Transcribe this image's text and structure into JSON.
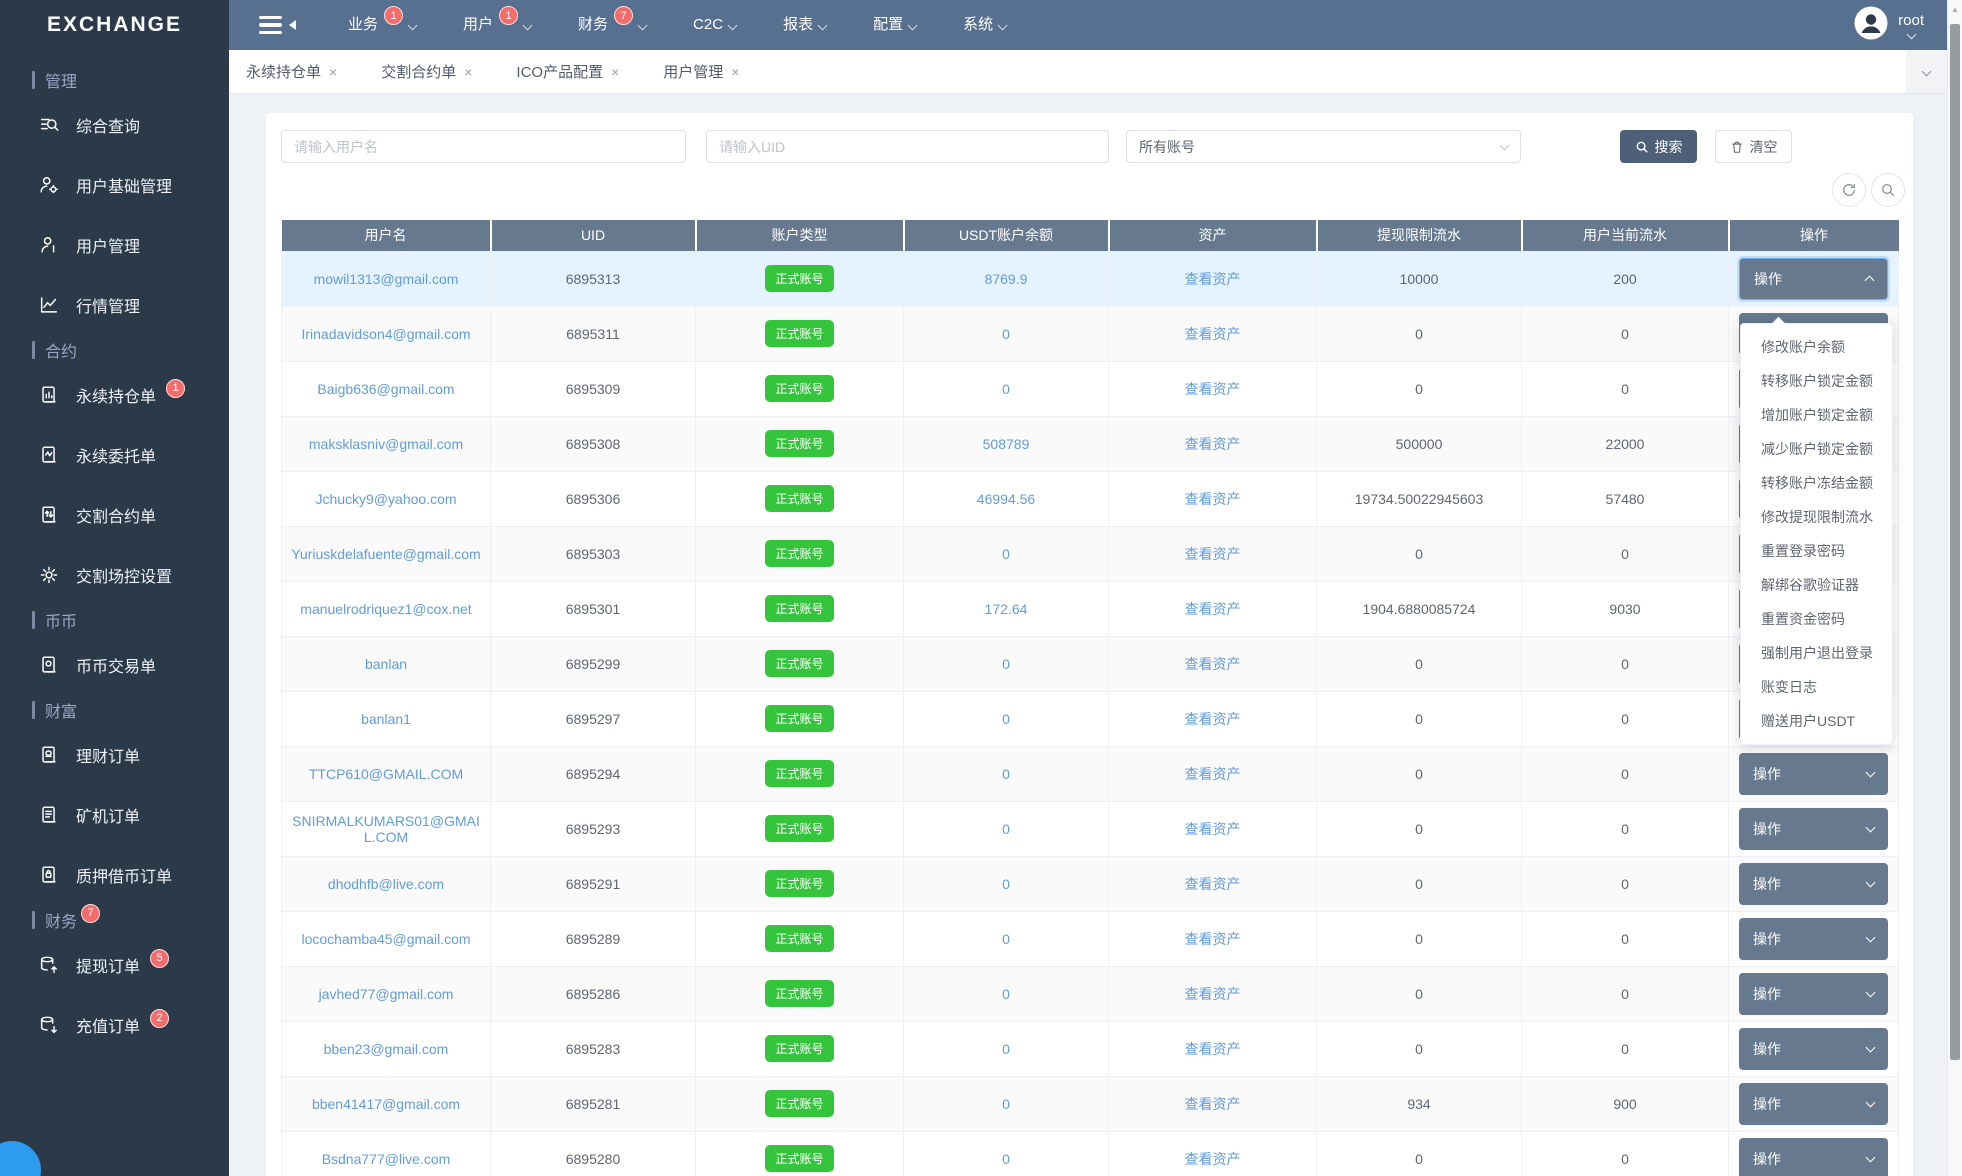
{
  "app": {
    "logo_text": "EXCHANGE",
    "user_name": "root"
  },
  "navbar": {
    "menus": [
      {
        "label": "业务",
        "badge": "1"
      },
      {
        "label": "用户",
        "badge": "1"
      },
      {
        "label": "财务",
        "badge": "7"
      },
      {
        "label": "C2C",
        "badge": ""
      },
      {
        "label": "报表",
        "badge": ""
      },
      {
        "label": "配置",
        "badge": ""
      },
      {
        "label": "系统",
        "badge": ""
      }
    ]
  },
  "sidebar": {
    "groups": [
      {
        "label": "管理",
        "badge": "",
        "items": [
          {
            "label": "综合查询",
            "icon": "search-list-icon",
            "badge": ""
          },
          {
            "label": "用户基础管理",
            "icon": "user-gear-icon",
            "badge": ""
          },
          {
            "label": "用户管理",
            "icon": "user-icon",
            "badge": ""
          },
          {
            "label": "行情管理",
            "icon": "chart-icon",
            "badge": ""
          }
        ]
      },
      {
        "label": "合约",
        "badge": "",
        "items": [
          {
            "label": "永续持仓单",
            "icon": "doc-chart-icon",
            "badge": "1"
          },
          {
            "label": "永续委托单",
            "icon": "doc-wave-icon",
            "badge": ""
          },
          {
            "label": "交割合约单",
            "icon": "doc-arrows-icon",
            "badge": ""
          },
          {
            "label": "交割场控设置",
            "icon": "gear-icon",
            "badge": ""
          }
        ]
      },
      {
        "label": "币币",
        "badge": "",
        "items": [
          {
            "label": "币币交易单",
            "icon": "doc-coin-icon",
            "badge": ""
          }
        ]
      },
      {
        "label": "财富",
        "badge": "",
        "items": [
          {
            "label": "理财订单",
            "icon": "doc-money-icon",
            "badge": ""
          },
          {
            "label": "矿机订单",
            "icon": "doc-lines-icon",
            "badge": ""
          },
          {
            "label": "质押借币订单",
            "icon": "doc-lock-icon",
            "badge": ""
          }
        ]
      },
      {
        "label": "财务",
        "badge": "7",
        "items": [
          {
            "label": "提现订单",
            "icon": "db-up-icon",
            "badge": "5"
          },
          {
            "label": "充值订单",
            "icon": "db-down-icon",
            "badge": "2"
          }
        ]
      }
    ]
  },
  "tabs": [
    {
      "label": "永续持仓单"
    },
    {
      "label": "交割合约单"
    },
    {
      "label": "ICO产品配置"
    },
    {
      "label": "用户管理"
    }
  ],
  "search": {
    "username_placeholder": "请输入用户名",
    "uid_placeholder": "请输入UID",
    "account_filter_value": "所有账号",
    "search_label": "搜索",
    "clear_label": "清空"
  },
  "toolbar_icons": {
    "refresh": "refresh-icon",
    "zoom": "magnifier-icon"
  },
  "table": {
    "columns": [
      "用户名",
      "UID",
      "账户类型",
      "USDT账户余额",
      "资产",
      "提现限制流水",
      "用户当前流水",
      "操作"
    ],
    "account_type_label": "正式账号",
    "assets_link_label": "查看资产",
    "action_label": "操作",
    "rows": [
      {
        "username": "mowil1313@gmail.com",
        "uid": "6895313",
        "balance": "8769.9",
        "withdraw_flow": "10000",
        "current_flow": "200",
        "highlighted": true,
        "expanded": true
      },
      {
        "username": "Irinadavidson4@gmail.com",
        "uid": "6895311",
        "balance": "0",
        "withdraw_flow": "0",
        "current_flow": "0"
      },
      {
        "username": "Baigb636@gmail.com",
        "uid": "6895309",
        "balance": "0",
        "withdraw_flow": "0",
        "current_flow": "0"
      },
      {
        "username": "maksklasniv@gmail.com",
        "uid": "6895308",
        "balance": "508789",
        "withdraw_flow": "500000",
        "current_flow": "22000"
      },
      {
        "username": "Jchucky9@yahoo.com",
        "uid": "6895306",
        "balance": "46994.56",
        "withdraw_flow": "19734.50022945603",
        "current_flow": "57480"
      },
      {
        "username": "Yuriuskdelafuente@gmail.com",
        "uid": "6895303",
        "balance": "0",
        "withdraw_flow": "0",
        "current_flow": "0"
      },
      {
        "username": "manuelrodriquez1@cox.net",
        "uid": "6895301",
        "balance": "172.64",
        "withdraw_flow": "1904.6880085724",
        "current_flow": "9030"
      },
      {
        "username": "banlan",
        "uid": "6895299",
        "balance": "0",
        "withdraw_flow": "0",
        "current_flow": "0"
      },
      {
        "username": "banlan1",
        "uid": "6895297",
        "balance": "0",
        "withdraw_flow": "0",
        "current_flow": "0"
      },
      {
        "username": "TTCP610@GMAIL.COM",
        "uid": "6895294",
        "balance": "0",
        "withdraw_flow": "0",
        "current_flow": "0"
      },
      {
        "username": "SNIRMALKUMARS01@GMAIL.COM",
        "uid": "6895293",
        "balance": "0",
        "withdraw_flow": "0",
        "current_flow": "0"
      },
      {
        "username": "dhodhfb@live.com",
        "uid": "6895291",
        "balance": "0",
        "withdraw_flow": "0",
        "current_flow": "0"
      },
      {
        "username": "locochamba45@gmail.com",
        "uid": "6895289",
        "balance": "0",
        "withdraw_flow": "0",
        "current_flow": "0"
      },
      {
        "username": "javhed77@gmail.com",
        "uid": "6895286",
        "balance": "0",
        "withdraw_flow": "0",
        "current_flow": "0"
      },
      {
        "username": "bben23@gmail.com",
        "uid": "6895283",
        "balance": "0",
        "withdraw_flow": "0",
        "current_flow": "0"
      },
      {
        "username": "bben41417@gmail.com",
        "uid": "6895281",
        "balance": "0",
        "withdraw_flow": "934",
        "current_flow": "900"
      },
      {
        "username": "Bsdna777@live.com",
        "uid": "6895280",
        "balance": "0",
        "withdraw_flow": "0",
        "current_flow": "0"
      }
    ]
  },
  "action_menu": {
    "items": [
      "修改账户余额",
      "转移账户锁定金额",
      "增加账户锁定金额",
      "减少账户锁定金额",
      "转移账户冻结金额",
      "修改提现限制流水",
      "重置登录密码",
      "解绑谷歌验证器",
      "重置资金密码",
      "强制用户退出登录",
      "账变日志",
      "赠送用户USDT"
    ]
  },
  "colors": {
    "navbar_bg": "#58708f",
    "sidebar_bg": "#2b3949",
    "header_bg": "#66798f",
    "link_blue": "#619cdb",
    "success_green": "#35c53c",
    "badge_red": "#f56c6c",
    "highlight_row": "#e4f3fd",
    "page_bg": "#eef1f5"
  }
}
